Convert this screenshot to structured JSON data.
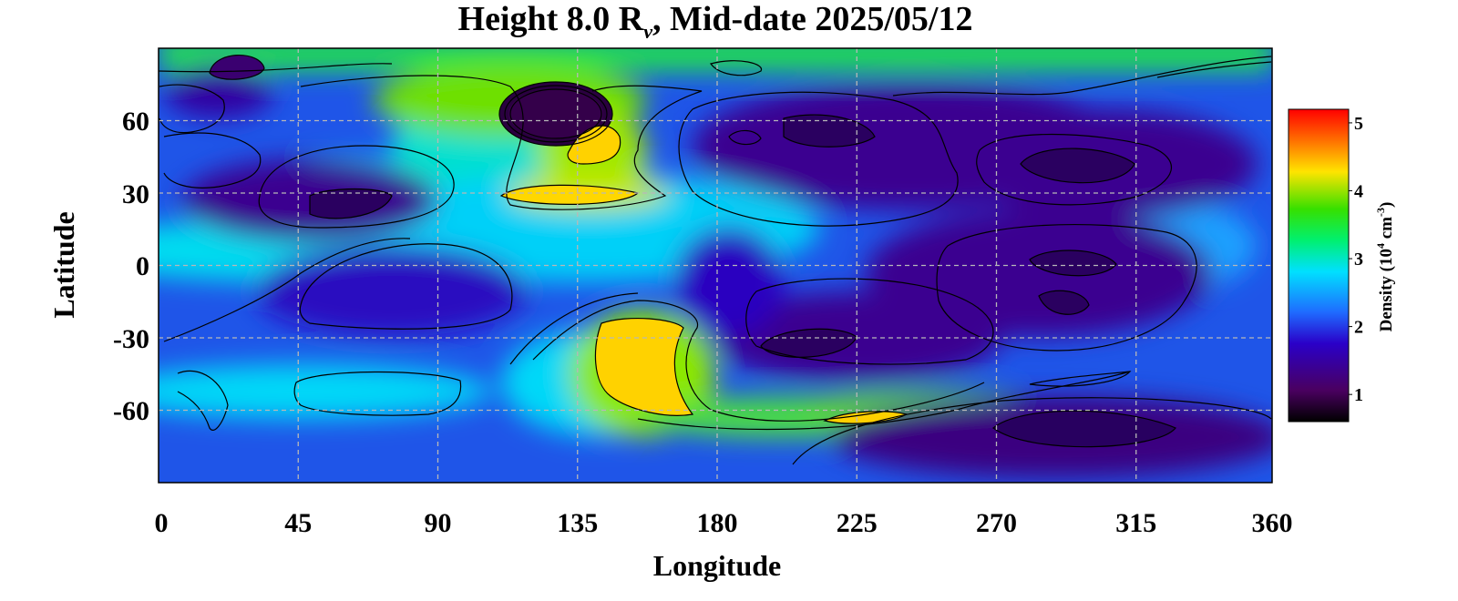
{
  "chart_data": {
    "type": "heatmap",
    "title_main": "Height 8.0 R",
    "title_sub": "ν",
    "title_rest": ", Mid-date 2025/05/12",
    "xlabel": "Longitude",
    "ylabel": "Latitude",
    "xlim": [
      0,
      360
    ],
    "ylim": [
      -90,
      90
    ],
    "x_ticks": [
      "0",
      "45",
      "90",
      "135",
      "180",
      "225",
      "270",
      "315",
      "360"
    ],
    "y_ticks": [
      "60",
      "30",
      "0",
      "-30",
      "-60"
    ],
    "grid": true,
    "colorbar": {
      "label_main": "Density (10",
      "label_exp1": "4",
      "label_mid": " cm",
      "label_exp2": "-3",
      "label_end": ")",
      "ticks": [
        "1",
        "2",
        "3",
        "4",
        "5"
      ],
      "range": [
        0.6,
        5.2
      ],
      "colors": [
        "#000000",
        "#4a0060",
        "#2a00c8",
        "#1f6bff",
        "#00e0ff",
        "#00f070",
        "#36e000",
        "#ffe400",
        "#ff5500",
        "#ff0000"
      ]
    },
    "features": [
      {
        "lon": 128,
        "lat": 72,
        "density": 0.8
      },
      {
        "lon": 153,
        "lat": 52,
        "density": 4.2
      },
      {
        "lon": 115,
        "lat": 31,
        "density": 4.1
      },
      {
        "lon": 158,
        "lat": -47,
        "density": 4.3
      },
      {
        "lon": 235,
        "lat": -62,
        "density": 4.0
      },
      {
        "lon": 60,
        "lat": 25,
        "density": 1.1
      },
      {
        "lon": 75,
        "lat": -15,
        "density": 1.5
      },
      {
        "lon": 215,
        "lat": 50,
        "density": 1.0
      },
      {
        "lon": 300,
        "lat": 40,
        "density": 1.0
      },
      {
        "lon": 300,
        "lat": -10,
        "density": 1.0
      },
      {
        "lon": 215,
        "lat": -30,
        "density": 1.0
      },
      {
        "lon": 300,
        "lat": -70,
        "density": 0.8
      },
      {
        "lon": 25,
        "lat": 85,
        "density": 1.0
      },
      {
        "lon": 30,
        "lat": -55,
        "density": 2.3
      },
      {
        "lon": 65,
        "lat": -50,
        "density": 2.4
      },
      {
        "lon": 20,
        "lat": 0,
        "density": 2.7
      },
      {
        "lon": 180,
        "lat": 88,
        "density": 3.5
      },
      {
        "lon": 300,
        "lat": 88,
        "density": 3.5
      }
    ]
  }
}
